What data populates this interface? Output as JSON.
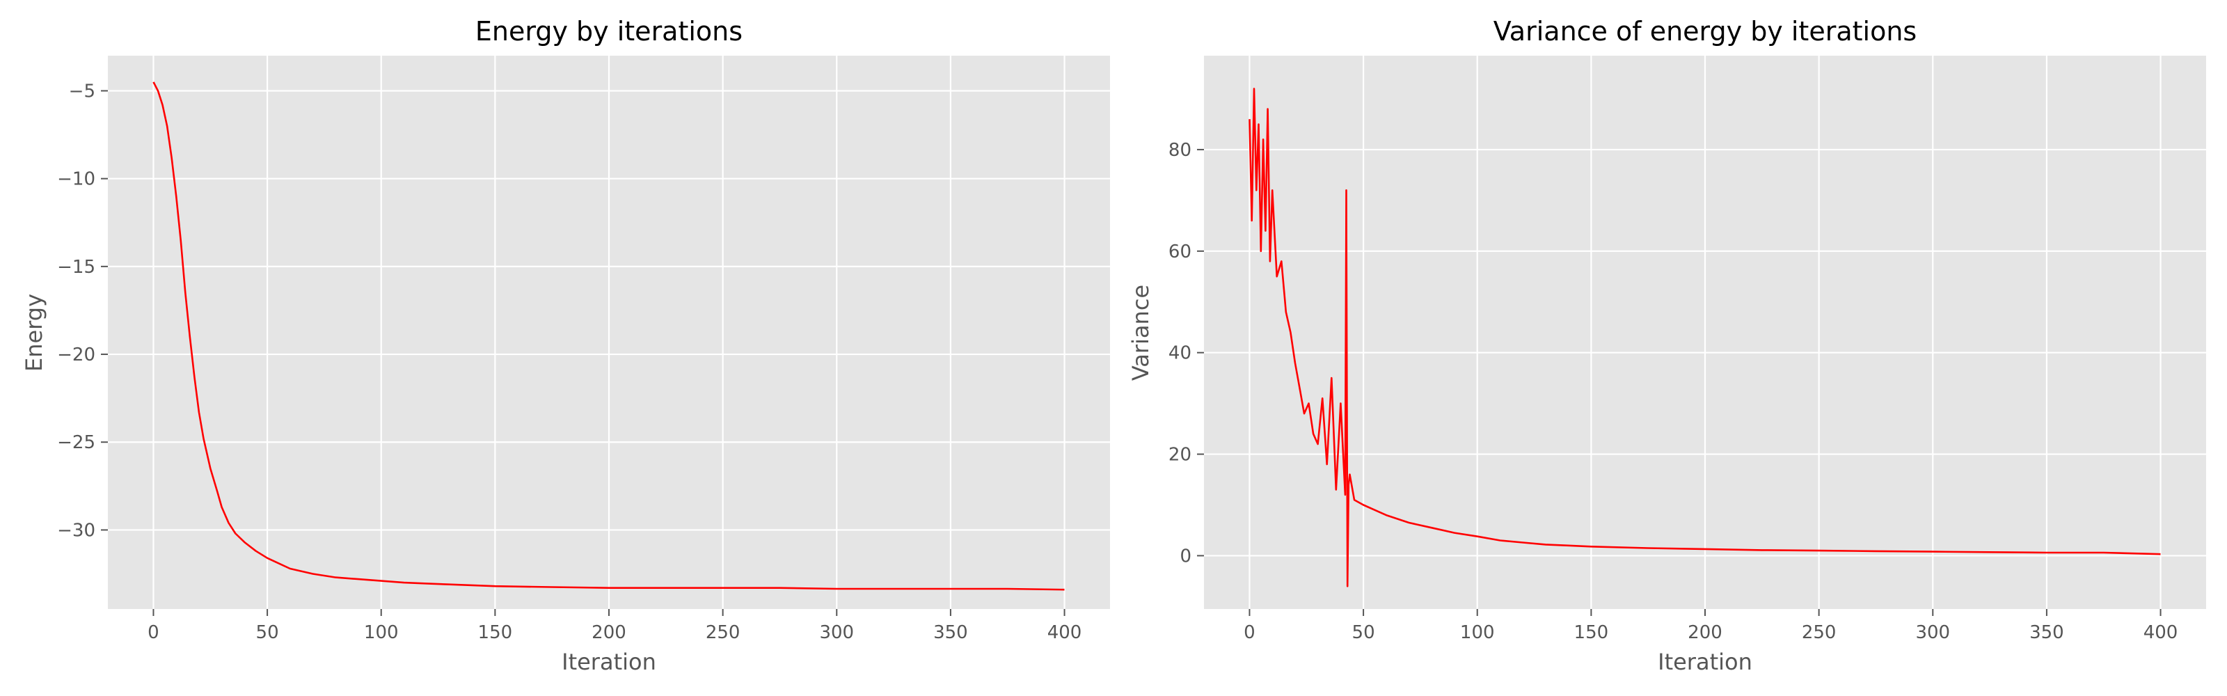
{
  "figure": {
    "charts": [
      {
        "title": "Energy by iterations",
        "xlabel": "Iteration",
        "ylabel": "Energy"
      },
      {
        "title": "Variance of energy by iterations",
        "xlabel": "Iteration",
        "ylabel": "Variance"
      }
    ]
  },
  "colors": {
    "series": "#ff0000",
    "plot_background": "#e5e5e5",
    "grid": "#ffffff",
    "text": "#555555"
  },
  "chart_data": [
    {
      "type": "line",
      "title": "Energy by iterations",
      "xlabel": "Iteration",
      "ylabel": "Energy",
      "xlim": [
        -20,
        420
      ],
      "ylim": [
        -34.5,
        -3.0
      ],
      "xticks": [
        0,
        50,
        100,
        150,
        200,
        250,
        300,
        350,
        400
      ],
      "yticks": [
        -30,
        -25,
        -20,
        -15,
        -10,
        -5
      ],
      "grid": true,
      "series": [
        {
          "color": "#ff0000",
          "x": [
            0,
            2,
            4,
            6,
            8,
            10,
            12,
            14,
            16,
            18,
            20,
            22,
            25,
            28,
            30,
            33,
            36,
            40,
            45,
            50,
            55,
            60,
            70,
            80,
            90,
            100,
            110,
            120,
            130,
            140,
            150,
            175,
            200,
            225,
            250,
            275,
            300,
            325,
            350,
            375,
            400
          ],
          "y": [
            -4.5,
            -5.0,
            -5.8,
            -7.0,
            -8.8,
            -11.0,
            -13.5,
            -16.5,
            -19.0,
            -21.3,
            -23.3,
            -24.8,
            -26.5,
            -27.8,
            -28.7,
            -29.6,
            -30.2,
            -30.7,
            -31.2,
            -31.6,
            -31.9,
            -32.2,
            -32.5,
            -32.7,
            -32.8,
            -32.9,
            -33.0,
            -33.05,
            -33.1,
            -33.15,
            -33.2,
            -33.25,
            -33.3,
            -33.3,
            -33.3,
            -33.3,
            -33.35,
            -33.35,
            -33.35,
            -33.35,
            -33.4
          ]
        }
      ]
    },
    {
      "type": "line",
      "title": "Variance of energy by iterations",
      "xlabel": "Iteration",
      "ylabel": "Variance",
      "xlim": [
        -20,
        420
      ],
      "ylim": [
        -10.5,
        98.5
      ],
      "xticks": [
        0,
        50,
        100,
        150,
        200,
        250,
        300,
        350,
        400
      ],
      "yticks": [
        0,
        20,
        40,
        60,
        80
      ],
      "grid": true,
      "series": [
        {
          "color": "#ff0000",
          "x": [
            0,
            1,
            2,
            3,
            4,
            5,
            6,
            7,
            8,
            9,
            10,
            12,
            14,
            16,
            18,
            20,
            22,
            24,
            26,
            28,
            30,
            32,
            34,
            36,
            38,
            40,
            42,
            42.5,
            43,
            43.5,
            44,
            46,
            50,
            55,
            60,
            70,
            80,
            90,
            100,
            110,
            120,
            130,
            140,
            150,
            175,
            200,
            225,
            250,
            275,
            300,
            325,
            350,
            375,
            400
          ],
          "y": [
            86,
            66,
            92,
            72,
            85,
            60,
            82,
            64,
            88,
            58,
            72,
            55,
            58,
            48,
            44,
            38,
            33,
            28,
            30,
            24,
            22,
            31,
            18,
            35,
            13,
            30,
            12,
            72,
            -6,
            14,
            16,
            11,
            10,
            9,
            8,
            6.5,
            5.5,
            4.5,
            3.8,
            3.0,
            2.6,
            2.2,
            2.0,
            1.8,
            1.5,
            1.3,
            1.1,
            1.0,
            0.9,
            0.8,
            0.7,
            0.6,
            0.6,
            0.3
          ]
        }
      ]
    }
  ]
}
